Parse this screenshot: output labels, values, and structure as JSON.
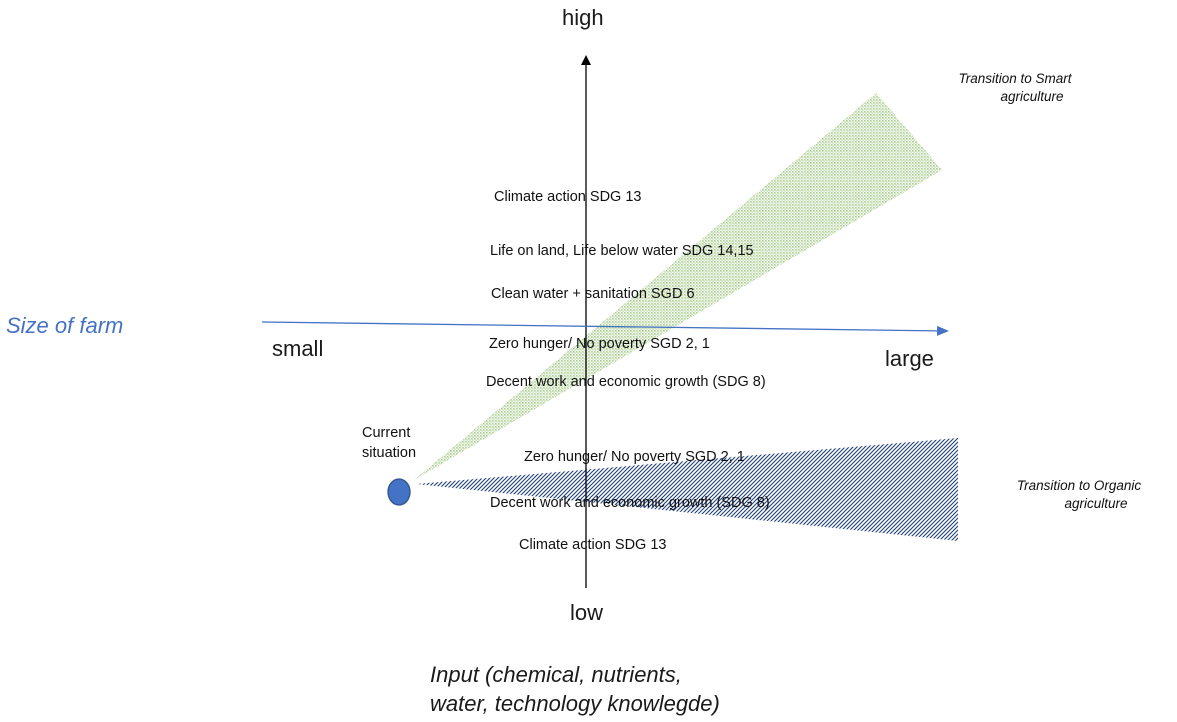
{
  "vertical_axis": {
    "top_label": "high",
    "bottom_label": "low",
    "title": "Input (chemical, nutrients, water, technology knowlegde)",
    "title_line1": "Input (chemical, nutrients,",
    "title_line2": "water, technology knowlegde)"
  },
  "horizontal_axis": {
    "title": "Size of farm",
    "left_label": "small",
    "right_label": "large",
    "title_color": "#4472C4",
    "arrow_color": "#4472C4"
  },
  "start_point": {
    "label_line1": "Current",
    "label_line2": "situation",
    "color": "#4472C4"
  },
  "smart_transition": {
    "label_line1": "Transition to  Smart",
    "label_line2": "agriculture",
    "fill_color": "#A9D08E",
    "sdg_items": [
      "Climate action SDG 13",
      "Life on land, Life below water SDG 14,15",
      "Clean water + sanitation SGD 6",
      "Zero hunger/ No poverty SGD 2, 1",
      "Decent work and economic growth (SDG 8)"
    ]
  },
  "organic_transition": {
    "label_line1": "Transition to  Organic",
    "label_line2": "agriculture",
    "fill_color": "#1F3F7A",
    "sdg_items": [
      "Zero hunger/ No poverty SGD 2, 1",
      "Decent work and economic growth (SDG 8)",
      "Climate action SDG 13"
    ]
  }
}
